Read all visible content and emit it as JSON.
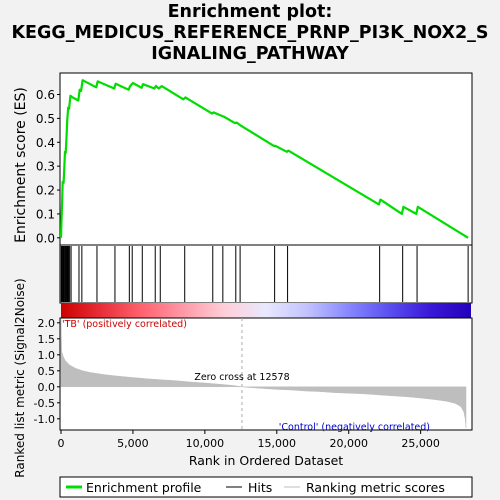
{
  "title_lines": [
    "Enrichment plot:",
    "KEGG_MEDICUS_REFERENCE_PRNP_PI3K_NOX2_S",
    "IGNALING_PATHWAY"
  ],
  "colors": {
    "es_line": "#00dd00",
    "hits": "#000000",
    "metric_fill": "#bebebe",
    "positive_label": "#cc0000",
    "negative_label": "#0000cc",
    "zero_cross_line": "#aaaaaa"
  },
  "chart_data": {
    "type": "line",
    "title": "Enrichment plot: KEGG_MEDICUS_REFERENCE_PRNP_PI3K_NOX2_SIGNALING_PATHWAY",
    "xlabel": "Rank in Ordered Dataset",
    "es_ylabel": "Enrichment score (ES)",
    "metric_ylabel": "Ranked list metric (Signal2Noise)",
    "xlim": [
      0,
      28500
    ],
    "es_ylim": [
      -0.03,
      0.69
    ],
    "metric_ylim": [
      -1.35,
      2.15
    ],
    "x_ticks": [
      {
        "value": 0,
        "label": "0"
      },
      {
        "value": 5000,
        "label": "5,000"
      },
      {
        "value": 10000,
        "label": "10,000"
      },
      {
        "value": 15000,
        "label": "15,000"
      },
      {
        "value": 20000,
        "label": "20,000"
      },
      {
        "value": 25000,
        "label": "25,000"
      }
    ],
    "es_ticks": [
      {
        "value": 0.0,
        "label": "0.0"
      },
      {
        "value": 0.1,
        "label": "0.1"
      },
      {
        "value": 0.2,
        "label": "0.2"
      },
      {
        "value": 0.3,
        "label": "0.3"
      },
      {
        "value": 0.4,
        "label": "0.4"
      },
      {
        "value": 0.5,
        "label": "0.5"
      },
      {
        "value": 0.6,
        "label": "0.6"
      }
    ],
    "metric_ticks": [
      {
        "value": 2.0,
        "label": "2.0"
      },
      {
        "value": 1.5,
        "label": "1.5"
      },
      {
        "value": 1.0,
        "label": "1.0"
      },
      {
        "value": 0.5,
        "label": "0.5"
      },
      {
        "value": 0.0,
        "label": "0.0"
      },
      {
        "value": -0.5,
        "label": "-0.5"
      },
      {
        "value": -1.0,
        "label": "-1.0"
      }
    ],
    "es_series": {
      "name": "Enrichment profile",
      "x": [
        0,
        30,
        80,
        120,
        180,
        230,
        280,
        330,
        380,
        430,
        500,
        560,
        650,
        750,
        1200,
        1300,
        1400,
        1500,
        2450,
        2550,
        3700,
        3800,
        4700,
        4800,
        5000,
        5600,
        5700,
        6500,
        6600,
        6800,
        7000,
        8500,
        8650,
        10500,
        10600,
        11200,
        11300,
        12100,
        12200,
        12500,
        14800,
        14900,
        15700,
        15800,
        22100,
        22200,
        23700,
        23800,
        24700,
        24800,
        28300
      ],
      "y": [
        0.0,
        0.06,
        0.16,
        0.235,
        0.23,
        0.295,
        0.36,
        0.355,
        0.42,
        0.49,
        0.545,
        0.54,
        0.595,
        0.59,
        0.575,
        0.62,
        0.615,
        0.66,
        0.63,
        0.655,
        0.625,
        0.645,
        0.62,
        0.635,
        0.648,
        0.628,
        0.643,
        0.625,
        0.636,
        0.625,
        0.635,
        0.58,
        0.588,
        0.52,
        0.525,
        0.51,
        0.508,
        0.48,
        0.483,
        0.47,
        0.385,
        0.385,
        0.36,
        0.365,
        0.14,
        0.16,
        0.1,
        0.13,
        0.1,
        0.13,
        0.0
      ]
    },
    "hits": [
      20,
      60,
      110,
      150,
      200,
      260,
      310,
      360,
      420,
      480,
      530,
      600,
      700,
      1250,
      1450,
      2500,
      3750,
      4750,
      4950,
      5650,
      6550,
      6900,
      8600,
      10550,
      11250,
      12150,
      12450,
      14850,
      15750,
      22150,
      23750,
      24750,
      28300
    ],
    "metric_series": {
      "name": "Ranking metric scores",
      "x": [
        0,
        50,
        150,
        300,
        600,
        1000,
        1500,
        2000,
        3000,
        4000,
        5000,
        6000,
        7000,
        8000,
        9000,
        10000,
        11000,
        12000,
        12578,
        13000,
        14000,
        15000,
        16000,
        17000,
        18000,
        19000,
        20000,
        21000,
        22000,
        23000,
        24000,
        25000,
        26000,
        26800,
        27400,
        27800,
        28000,
        28100,
        28150
      ],
      "y": [
        2.1,
        1.1,
        0.95,
        0.82,
        0.68,
        0.58,
        0.5,
        0.45,
        0.38,
        0.33,
        0.29,
        0.25,
        0.22,
        0.19,
        0.15,
        0.12,
        0.08,
        0.04,
        0.0,
        -0.02,
        -0.05,
        -0.08,
        -0.1,
        -0.13,
        -0.15,
        -0.18,
        -0.2,
        -0.22,
        -0.25,
        -0.28,
        -0.31,
        -0.35,
        -0.4,
        -0.45,
        -0.52,
        -0.62,
        -0.78,
        -1.0,
        -1.28
      ]
    },
    "zero_cross": 12578,
    "zero_cross_label": "Zero cross at 12578",
    "positive_label": "'TB' (positively correlated)",
    "negative_label": "'Control' (negatively correlated)",
    "gradient_colors": [
      "#cc0000",
      "#e8303a",
      "#ff6470",
      "#ff9aa8",
      "#ffcfd8",
      "#e8e8ff",
      "#c2c2ff",
      "#8888ff",
      "#5a50f0",
      "#3a18d8",
      "#2200bb"
    ],
    "legend": [
      {
        "label": "Enrichment profile",
        "color": "#00dd00"
      },
      {
        "label": "Hits",
        "color": "#000000"
      },
      {
        "label": "Ranking metric scores",
        "color": "#bebebe"
      }
    ]
  }
}
